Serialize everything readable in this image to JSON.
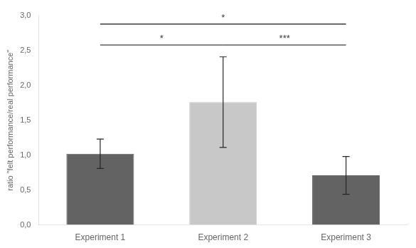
{
  "chart_data": {
    "type": "bar",
    "categories": [
      "Experiment 1",
      "Experiment 2",
      "Experiment 3"
    ],
    "values": [
      1.02,
      1.76,
      0.71
    ],
    "errors": [
      0.21,
      0.65,
      0.27
    ],
    "colors": [
      "#636363",
      "#c8c8c8",
      "#636363"
    ],
    "ylabel": "ratio \"felt performance/real performance\"",
    "ylim": [
      0.0,
      3.0
    ],
    "yticks": [
      {
        "value": 0.0,
        "label": "0,0"
      },
      {
        "value": 0.5,
        "label": "0,5"
      },
      {
        "value": 1.0,
        "label": "1,0"
      },
      {
        "value": 1.5,
        "label": "1,5"
      },
      {
        "value": 2.0,
        "label": "2,0"
      },
      {
        "value": 2.5,
        "label": "2,5"
      },
      {
        "value": 3.0,
        "label": "3,0"
      }
    ],
    "annotations": [
      {
        "x1": "Experiment 1",
        "x2": "Experiment 2",
        "y": 2.58,
        "text": "*"
      },
      {
        "x1": "Experiment 1",
        "x2": "Experiment 3",
        "y": 2.88,
        "text": "*"
      },
      {
        "x1": "Experiment 2",
        "x2": "Experiment 3",
        "y": 2.58,
        "text": "***"
      }
    ],
    "grid": false
  }
}
